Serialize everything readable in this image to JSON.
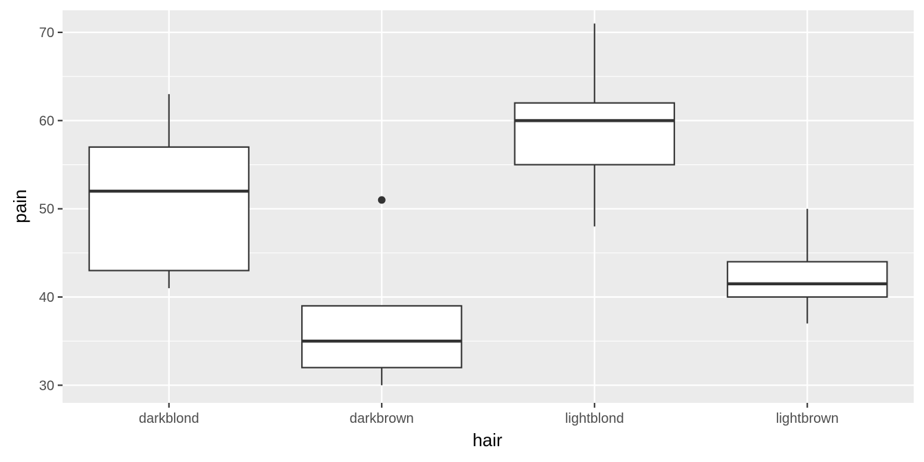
{
  "chart_data": {
    "type": "boxplot",
    "xlabel": "hair",
    "ylabel": "pain",
    "categories": [
      "darkblond",
      "darkbrown",
      "lightblond",
      "lightbrown"
    ],
    "boxes": [
      {
        "category": "darkblond",
        "whisker_low": 41,
        "q1": 43,
        "median": 52,
        "q3": 57,
        "whisker_high": 63,
        "outliers": []
      },
      {
        "category": "darkbrown",
        "whisker_low": 30,
        "q1": 32,
        "median": 35,
        "q3": 39,
        "whisker_high": 39,
        "outliers": [
          51
        ]
      },
      {
        "category": "lightblond",
        "whisker_low": 48,
        "q1": 55,
        "median": 60,
        "q3": 62,
        "whisker_high": 71,
        "outliers": []
      },
      {
        "category": "lightbrown",
        "whisker_low": 37,
        "q1": 40,
        "median": 41.5,
        "q3": 44,
        "whisker_high": 50,
        "outliers": []
      }
    ],
    "yticks": [
      30,
      40,
      50,
      60,
      70
    ],
    "ylim": [
      28,
      72.5
    ],
    "grid": true,
    "legend": "none",
    "colors": {
      "panel": "#ebebeb",
      "grid": "#ffffff",
      "box_fill": "#ffffff",
      "box_stroke": "#333333",
      "tick_text": "#4d4d4d"
    }
  }
}
